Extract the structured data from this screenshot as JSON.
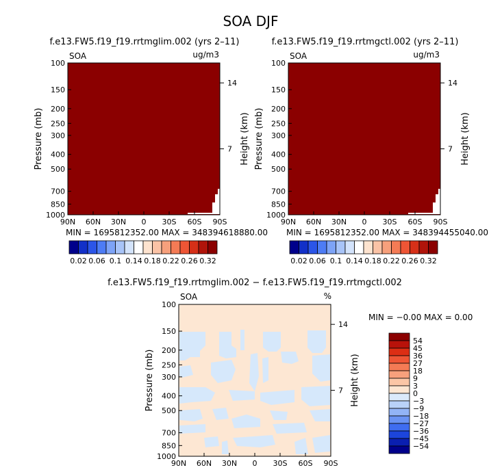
{
  "figure_title": "SOA DJF",
  "colors": {
    "fill_top": "#8b0000",
    "diff_background": "#fde7d3",
    "diff_blue": "#d6e8fb",
    "white": "#ffffff"
  },
  "chart_data": [
    {
      "type": "heatmap",
      "title": "f.e13.FW5.f19_f19.rrtmglim.002 (yrs 2–11)",
      "variable_label": "SOA",
      "units_label": "ug/m3",
      "ylabel": "Pressure (mb)",
      "right_label": "Height (km)",
      "y_ticks": [
        "100",
        "150",
        "200",
        "250",
        "300",
        "400",
        "500",
        "700",
        "850",
        "1000"
      ],
      "height_ticks": [
        "14",
        "7"
      ],
      "x_ticks": [
        "90N",
        "60N",
        "30N",
        "0",
        "30S",
        "60S",
        "90S"
      ],
      "stats": "MIN = 1695812352.00   MAX = 348394618880.00",
      "colorbar_labels": [
        "0.02",
        "0.06",
        "0.1",
        "0.14",
        "0.18",
        "0.22",
        "0.26",
        "0.32"
      ],
      "colorbar_colors": [
        "#00008b",
        "#1230c8",
        "#2b55e8",
        "#4d7cf5",
        "#7da3f7",
        "#a8c4f8",
        "#d3e3fb",
        "#ffffff",
        "#fde3cf",
        "#fbc3a6",
        "#f7a07c",
        "#f47b55",
        "#ee5535",
        "#d63018",
        "#b0140a",
        "#8b0000"
      ]
    },
    {
      "type": "heatmap",
      "title": "f.e13.FW5.f19_f19.rrtmgctl.002 (yrs 2–11)",
      "variable_label": "SOA",
      "units_label": "ug/m3",
      "ylabel": "Pressure (mb)",
      "right_label": "Height (km)",
      "y_ticks": [
        "100",
        "150",
        "200",
        "250",
        "300",
        "400",
        "500",
        "700",
        "850",
        "1000"
      ],
      "height_ticks": [
        "14",
        "7"
      ],
      "x_ticks": [
        "90N",
        "60N",
        "30N",
        "0",
        "30S",
        "60S",
        "90S"
      ],
      "stats": "MIN = 1695812352.00   MAX = 348394455040.00",
      "colorbar_labels": [
        "0.02",
        "0.06",
        "0.1",
        "0.14",
        "0.18",
        "0.22",
        "0.26",
        "0.32"
      ],
      "colorbar_colors": [
        "#00008b",
        "#1230c8",
        "#2b55e8",
        "#4d7cf5",
        "#7da3f7",
        "#a8c4f8",
        "#d3e3fb",
        "#ffffff",
        "#fde3cf",
        "#fbc3a6",
        "#f7a07c",
        "#f47b55",
        "#ee5535",
        "#d63018",
        "#b0140a",
        "#8b0000"
      ]
    },
    {
      "type": "heatmap",
      "title": "f.e13.FW5.f19_f19.rrtmglim.002 − f.e13.FW5.f19_f19.rrtmgctl.002",
      "variable_label": "SOA",
      "units_label": "%",
      "ylabel": "Pressure (mb)",
      "right_label": "Height (km)",
      "y_ticks": [
        "100",
        "150",
        "200",
        "250",
        "300",
        "400",
        "500",
        "700",
        "850",
        "1000"
      ],
      "height_ticks": [
        "14",
        "7"
      ],
      "x_ticks": [
        "90N",
        "60N",
        "30N",
        "0",
        "30S",
        "60S",
        "90S"
      ],
      "stats": "MIN =   −0.00   MAX =     0.00",
      "colorbar_labels": [
        "54",
        "45",
        "36",
        "27",
        "18",
        "9",
        "3",
        "0",
        "−3",
        "−9",
        "−18",
        "−27",
        "−36",
        "−45",
        "−54"
      ],
      "colorbar_colors": [
        "#8b0000",
        "#b8120a",
        "#dc2e14",
        "#ee5535",
        "#f47b55",
        "#f7a07c",
        "#fbc6a6",
        "#fde6d2",
        "#dbeafb",
        "#b9d2f8",
        "#92b4f6",
        "#6a93f3",
        "#3f6df0",
        "#1c45dc",
        "#0a1fb0",
        "#00008b"
      ]
    }
  ]
}
